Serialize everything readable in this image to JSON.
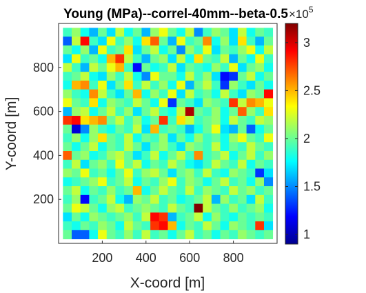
{
  "chart_data": {
    "type": "heatmap",
    "title": "Young (MPa)--correl-40mm--beta-0.5",
    "xlabel": "X-coord [m]",
    "ylabel": "Y-coord [m]",
    "xlim": [
      0,
      1000
    ],
    "ylim": [
      0,
      1000
    ],
    "x_ticks": [
      "200",
      "400",
      "600",
      "800"
    ],
    "y_ticks": [
      "200",
      "400",
      "600",
      "800"
    ],
    "colormap": "jet",
    "colorbar": {
      "clim": [
        0.9,
        3.2
      ],
      "ticks": [
        "1",
        "1.5",
        "2",
        "2.5",
        "3"
      ],
      "exponent_base": "×10",
      "exponent_power": "5"
    },
    "cell_size": 40,
    "x_centers": [
      40,
      80,
      120,
      160,
      200,
      240,
      280,
      320,
      360,
      400,
      440,
      480,
      520,
      560,
      600,
      640,
      680,
      720,
      760,
      800,
      840,
      880,
      920,
      960
    ],
    "y_centers_top_to_bottom": [
      960,
      920,
      880,
      840,
      800,
      760,
      720,
      680,
      640,
      600,
      560,
      520,
      480,
      440,
      400,
      360,
      320,
      280,
      240,
      200,
      160,
      120,
      80,
      40
    ],
    "values": [
      [
        1.9,
        2.1,
        1.8,
        1.6,
        2.0,
        1.7,
        2.2,
        1.8,
        2.0,
        1.6,
        2.1,
        2.3,
        2.0,
        1.8,
        2.2,
        1.5,
        1.9,
        2.1,
        2.0,
        1.7,
        2.2,
        1.8,
        2.0,
        1.9
      ],
      [
        1.4,
        2.2,
        2.9,
        1.9,
        1.7,
        2.3,
        1.9,
        2.1,
        1.8,
        2.4,
        2.7,
        2.0,
        1.6,
        2.3,
        1.9,
        2.0,
        2.6,
        1.8,
        2.1,
        1.7,
        2.4,
        1.9,
        1.6,
        2.0
      ],
      [
        2.0,
        1.8,
        2.1,
        1.6,
        2.3,
        1.9,
        2.0,
        2.4,
        1.7,
        2.0,
        2.2,
        1.8,
        2.0,
        1.5,
        2.1,
        1.9,
        2.3,
        1.7,
        2.0,
        1.9,
        2.1,
        2.3,
        1.8,
        2.2
      ],
      [
        1.7,
        2.3,
        1.9,
        2.0,
        1.8,
        2.5,
        2.8,
        2.2,
        1.9,
        1.6,
        2.0,
        2.1,
        1.7,
        2.2,
        1.8,
        2.4,
        2.0,
        1.9,
        2.2,
        1.6,
        2.0,
        1.8,
        2.3,
        1.9
      ],
      [
        2.2,
        1.9,
        1.6,
        2.2,
        2.0,
        2.3,
        2.5,
        1.9,
        1.2,
        2.0,
        1.8,
        1.9,
        2.2,
        1.7,
        2.0,
        1.9,
        1.8,
        2.1,
        1.9,
        2.3,
        1.7,
        2.0,
        2.1,
        1.8
      ],
      [
        1.9,
        2.0,
        2.2,
        1.8,
        1.7,
        2.1,
        1.9,
        2.2,
        1.8,
        1.5,
        2.3,
        2.0,
        2.0,
        1.8,
        2.2,
        1.9,
        2.1,
        1.7,
        1.2,
        1.3,
        2.0,
        2.2,
        1.8,
        2.0
      ],
      [
        1.8,
        2.5,
        2.6,
        1.9,
        2.3,
        1.7,
        2.0,
        2.4,
        1.9,
        2.2,
        1.9,
        2.1,
        1.8,
        2.3,
        1.6,
        2.0,
        2.2,
        1.9,
        1.3,
        2.1,
        1.9,
        1.7,
        2.0,
        1.8
      ],
      [
        2.1,
        1.9,
        1.8,
        2.6,
        2.2,
        1.9,
        1.7,
        2.0,
        2.5,
        1.8,
        2.1,
        1.9,
        2.3,
        1.7,
        2.2,
        1.9,
        2.0,
        1.8,
        2.2,
        1.9,
        1.7,
        2.1,
        2.0,
        2.9
      ],
      [
        2.3,
        2.0,
        1.9,
        2.4,
        1.8,
        2.1,
        2.0,
        1.9,
        2.2,
        2.0,
        1.8,
        2.3,
        1.3,
        2.0,
        1.9,
        1.7,
        2.1,
        2.0,
        1.9,
        2.8,
        2.2,
        2.6,
        2.5,
        2.3
      ],
      [
        1.6,
        2.1,
        2.2,
        1.8,
        2.0,
        2.2,
        1.9,
        2.1,
        1.7,
        2.0,
        2.2,
        1.9,
        1.8,
        2.2,
        3.1,
        2.0,
        1.9,
        2.1,
        1.8,
        2.0,
        2.7,
        2.1,
        1.9,
        2.4
      ],
      [
        2.8,
        2.9,
        2.4,
        2.5,
        2.6,
        2.0,
        2.2,
        1.9,
        2.1,
        1.8,
        2.0,
        2.8,
        1.9,
        2.4,
        2.2,
        1.9,
        2.0,
        2.1,
        1.8,
        2.2,
        2.0,
        1.9,
        2.2,
        2.1
      ],
      [
        2.0,
        1.1,
        1.5,
        2.1,
        1.9,
        1.8,
        2.0,
        1.9,
        2.2,
        1.7,
        2.5,
        1.9,
        2.0,
        1.9,
        1.6,
        1.8,
        2.0,
        2.3,
        1.7,
        1.6,
        2.0,
        1.4,
        1.8,
        2.0
      ],
      [
        1.9,
        2.1,
        1.8,
        2.1,
        2.4,
        2.0,
        1.9,
        2.2,
        1.8,
        2.0,
        1.9,
        2.1,
        1.7,
        2.0,
        1.8,
        2.1,
        1.9,
        2.0,
        1.8,
        2.1,
        2.3,
        2.0,
        1.9,
        2.3
      ],
      [
        2.0,
        1.8,
        2.0,
        2.2,
        1.8,
        2.0,
        1.9,
        2.2,
        2.0,
        1.7,
        2.0,
        2.1,
        1.9,
        1.7,
        2.1,
        2.0,
        1.9,
        2.2,
        1.8,
        2.0,
        1.9,
        2.2,
        2.0,
        1.9
      ],
      [
        2.7,
        2.0,
        2.1,
        1.8,
        1.9,
        2.1,
        2.2,
        2.0,
        1.7,
        1.9,
        2.2,
        1.8,
        2.0,
        2.2,
        1.9,
        2.6,
        1.9,
        2.0,
        2.2,
        1.8,
        2.0,
        2.2,
        1.9,
        2.1
      ],
      [
        1.9,
        2.2,
        1.7,
        2.0,
        2.1,
        1.9,
        2.3,
        2.0,
        2.2,
        1.8,
        2.0,
        1.9,
        2.2,
        2.0,
        1.8,
        1.7,
        1.9,
        2.2,
        2.0,
        1.9,
        2.2,
        1.8,
        2.0,
        1.9
      ],
      [
        2.1,
        2.0,
        2.3,
        1.9,
        2.0,
        1.8,
        2.0,
        2.3,
        1.9,
        2.1,
        2.2,
        2.0,
        1.7,
        2.0,
        2.1,
        1.9,
        2.2,
        1.9,
        1.8,
        2.1,
        2.0,
        1.9,
        1.3,
        1.7
      ],
      [
        1.8,
        1.9,
        2.0,
        2.1,
        2.3,
        1.9,
        2.0,
        2.2,
        1.8,
        2.0,
        1.9,
        2.1,
        2.3,
        1.9,
        2.1,
        2.0,
        1.8,
        2.0,
        2.2,
        1.9,
        2.0,
        1.8,
        2.1,
        1.5
      ],
      [
        2.0,
        2.2,
        1.8,
        2.0,
        1.9,
        2.1,
        1.9,
        2.0,
        2.5,
        1.8,
        2.0,
        2.2,
        2.0,
        1.9,
        2.2,
        1.9,
        2.1,
        2.0,
        1.9,
        2.2,
        2.0,
        2.1,
        1.9,
        2.0
      ],
      [
        1.9,
        2.1,
        1.2,
        1.9,
        2.0,
        2.2,
        1.8,
        1.6,
        2.1,
        2.0,
        2.2,
        1.9,
        2.0,
        1.8,
        1.9,
        2.0,
        2.2,
        1.6,
        2.1,
        1.9,
        2.0,
        1.7,
        2.2,
        1.9
      ],
      [
        2.0,
        2.3,
        2.2,
        2.0,
        1.8,
        2.1,
        2.2,
        1.9,
        2.0,
        2.1,
        2.0,
        1.9,
        2.2,
        2.0,
        1.9,
        3.2,
        2.2,
        2.0,
        1.9,
        2.1,
        1.9,
        2.0,
        2.1,
        1.8
      ],
      [
        1.7,
        2.0,
        1.8,
        2.1,
        2.0,
        1.9,
        2.0,
        2.1,
        1.9,
        2.2,
        2.9,
        2.8,
        1.6,
        1.9,
        2.0,
        2.2,
        1.8,
        2.1,
        1.9,
        1.8,
        2.0,
        1.9,
        2.0,
        1.9
      ],
      [
        1.9,
        1.8,
        2.0,
        1.9,
        2.1,
        2.0,
        1.8,
        2.2,
        2.0,
        1.9,
        2.8,
        2.9,
        2.5,
        1.8,
        2.0,
        1.9,
        2.2,
        2.0,
        1.8,
        2.1,
        2.0,
        1.9,
        2.8,
        1.7
      ],
      [
        2.0,
        1.4,
        1.4,
        1.8,
        2.3,
        2.0,
        1.9,
        2.1,
        1.9,
        2.2,
        1.9,
        2.0,
        1.8,
        2.0,
        2.2,
        1.9,
        2.0,
        1.8,
        2.0,
        1.9,
        2.1,
        2.0,
        1.9,
        2.0
      ]
    ]
  }
}
